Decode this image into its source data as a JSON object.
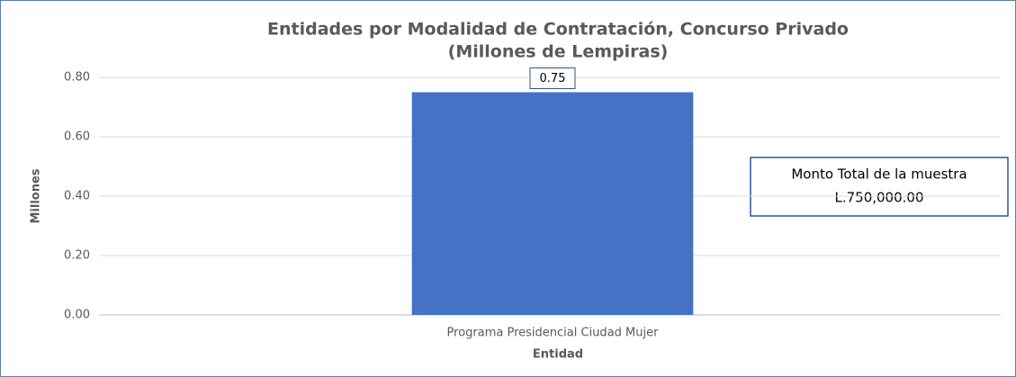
{
  "chart_data": {
    "type": "bar",
    "title": [
      "Entidades por Modalidad de Contratación, Concurso Privado",
      "(Millones de Lempiras)"
    ],
    "categories": [
      "Programa Presidencial Ciudad Mujer"
    ],
    "values": [
      0.75
    ],
    "color": "#4472c4",
    "xlabel": "Entidad",
    "ylabel": "Millones",
    "ylim": [
      0,
      0.8
    ],
    "yticks": [
      {
        "value": 0,
        "label": "0.00"
      },
      {
        "value": 0.2,
        "label": "0.20"
      },
      {
        "value": 0.4,
        "label": "0.40"
      },
      {
        "value": 0.6,
        "label": "0.60"
      },
      {
        "value": 0.8,
        "label": "0.80"
      }
    ],
    "grid": true,
    "annotation": [
      "Monto Total de la muestra",
      "L.750,000.00"
    ]
  }
}
